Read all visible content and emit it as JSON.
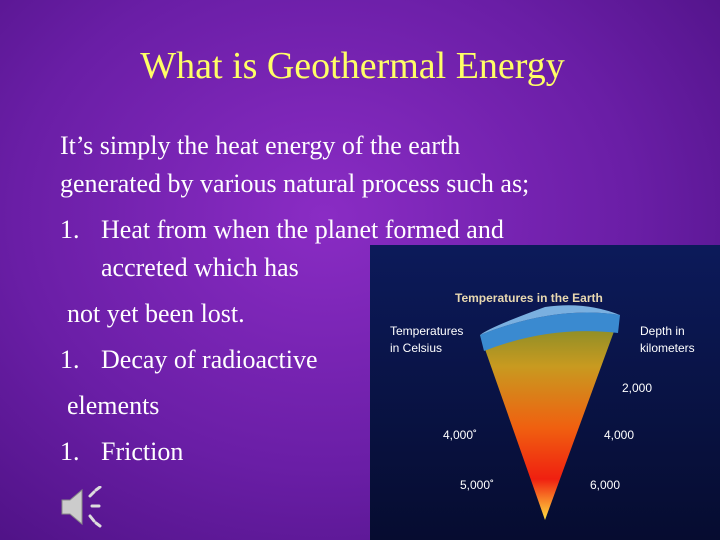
{
  "slide": {
    "title": "What is Geothermal Energy",
    "body": [
      "It’s simply the heat energy of the earth",
      "generated by various natural process such as;"
    ],
    "items": [
      {
        "number": "1.",
        "lines": [
          "Heat from when the planet formed and",
          "accreted which has",
          "not yet been lost."
        ]
      },
      {
        "number": "1.",
        "lines": [
          "Decay of radioactive",
          "elements"
        ]
      },
      {
        "number": "1.",
        "lines": [
          "Friction"
        ]
      }
    ],
    "figure": {
      "title": "Temperatures in the Earth",
      "left_label": [
        "Temperatures",
        "in Celsius"
      ],
      "right_label": [
        "Depth in",
        "kilometers"
      ],
      "labels": [
        "2,000",
        "4,000˚",
        "4,000",
        "5,000˚",
        "6,000"
      ]
    }
  }
}
